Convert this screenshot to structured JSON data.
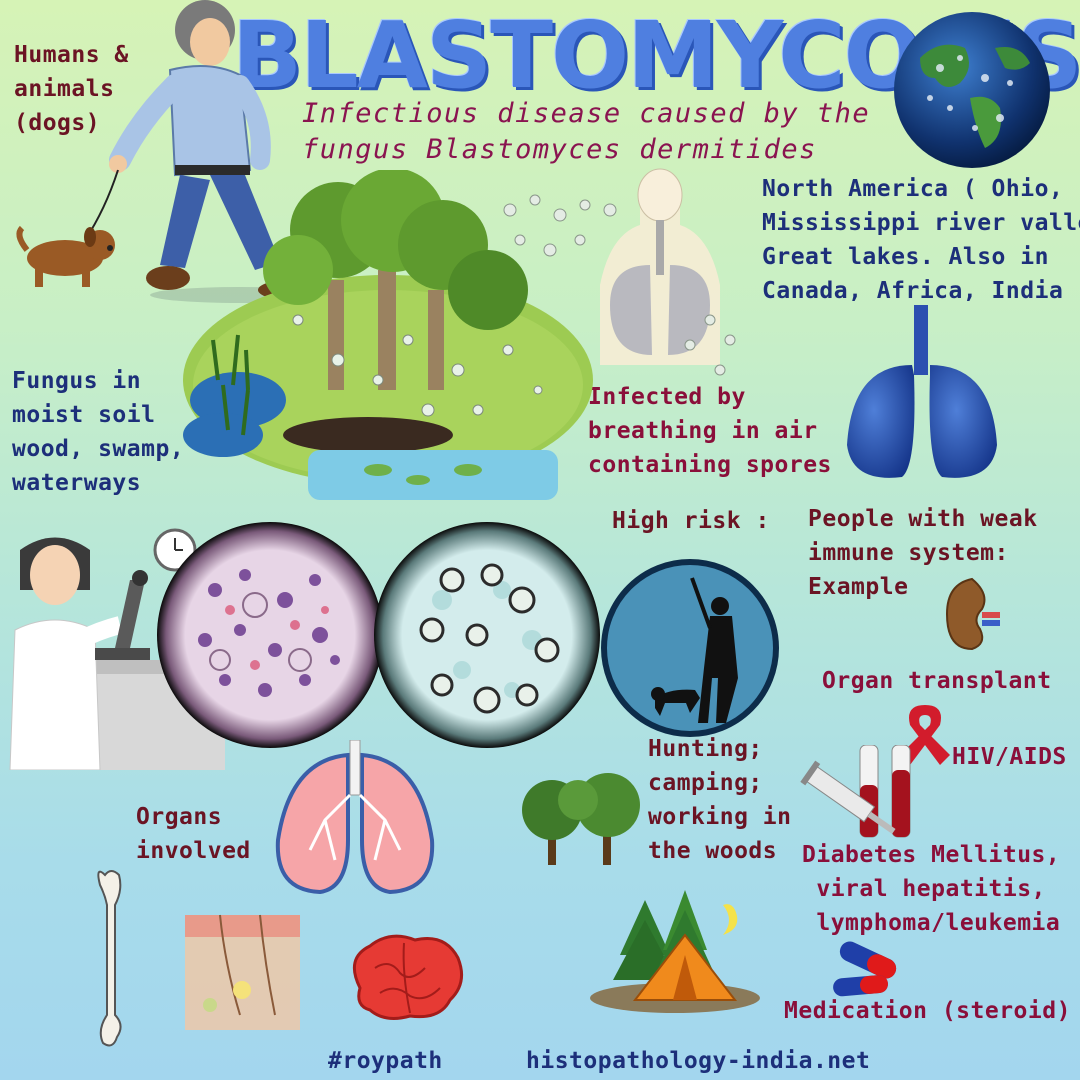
{
  "title": "BLASTOMYCOSIS",
  "subtitle": "Infectious disease caused by the\nfungus Blastomyces dermitides",
  "hosts": "Humans &\nanimals\n(dogs)",
  "geography": "North America ( Ohio,\nMississippi river valleys\nGreat lakes. Also in\nCanada, Africa, India",
  "habitat": "Fungus in\nmoist soil\nwood, swamp,\nwaterways",
  "transmission": "Infected by\nbreathing in air\ncontaining spores",
  "high_risk": "High risk :",
  "weak_immune": "People with weak\nimmune system:\nExample",
  "organ_transplant": "Organ transplant",
  "hiv_aids": "HIV/AIDS",
  "activities": "Hunting;\ncamping;\nworking in\nthe woods",
  "organs": "Organs\ninvolved",
  "conditions": "Diabetes Mellitus,\n viral hepatitis,\n lymphoma/leukemia",
  "medication": "Medication (steroid)",
  "hashtag": "#roypath",
  "website": "histopathology-india.net",
  "colors": {
    "title_blue": "#4f7fe0",
    "navy_text": "#1d2f7a",
    "maroon_text": "#6b1424",
    "magenta_text": "#8a0f3a"
  },
  "icons": [
    "man-walking-dog",
    "globe-icon",
    "forest-swamp",
    "human-respiratory-system",
    "blue-lungs-icon",
    "scientist-with-microscope",
    "micrograph-he-stain",
    "micrograph-silver-stain",
    "hunter-silhouette",
    "kidney-icon",
    "red-ribbon-icon",
    "syringe-blood-tubes",
    "pink-lungs",
    "bone",
    "skin-section",
    "brain",
    "trees",
    "camping-tent",
    "capsule-pills"
  ]
}
